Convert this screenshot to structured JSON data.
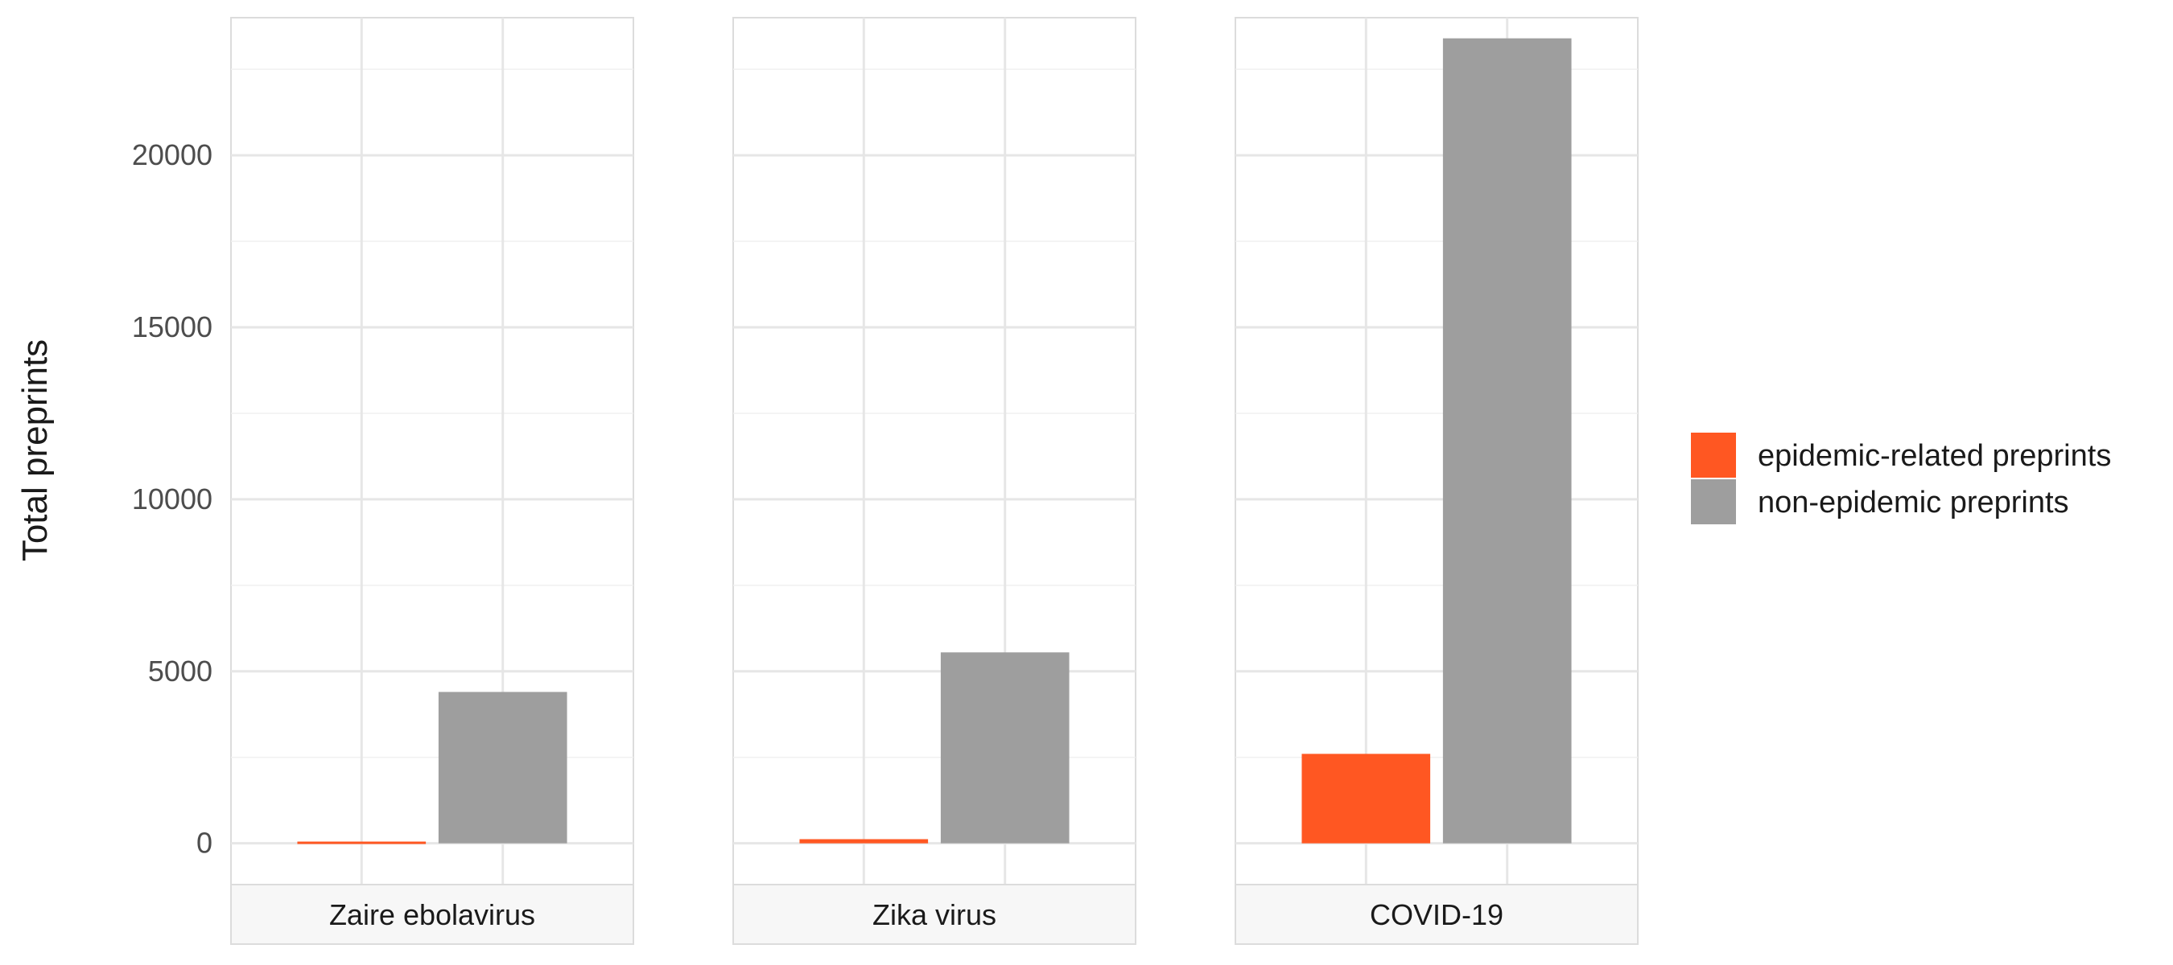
{
  "chart_data": {
    "type": "bar",
    "ylabel": "Total preprints",
    "ylim": [
      -1200,
      24000
    ],
    "yticks": [
      0,
      5000,
      10000,
      15000,
      20000
    ],
    "grid": true,
    "legend_position": "right",
    "series_order": [
      "epidemic-related preprints",
      "non-epidemic preprints"
    ],
    "colors": {
      "epidemic-related preprints": "#ff5722",
      "non-epidemic preprints": "#9e9e9e"
    },
    "facets": [
      {
        "label": "Zaire ebolavirus",
        "values": {
          "epidemic-related preprints": 50,
          "non-epidemic preprints": 4400
        }
      },
      {
        "label": "Zika virus",
        "values": {
          "epidemic-related preprints": 120,
          "non-epidemic preprints": 5550
        }
      },
      {
        "label": "COVID-19",
        "values": {
          "epidemic-related preprints": 2600,
          "non-epidemic preprints": 23400
        }
      }
    ],
    "legend": [
      {
        "label": "epidemic-related preprints",
        "color": "#ff5722"
      },
      {
        "label": "non-epidemic preprints",
        "color": "#9e9e9e"
      }
    ]
  }
}
